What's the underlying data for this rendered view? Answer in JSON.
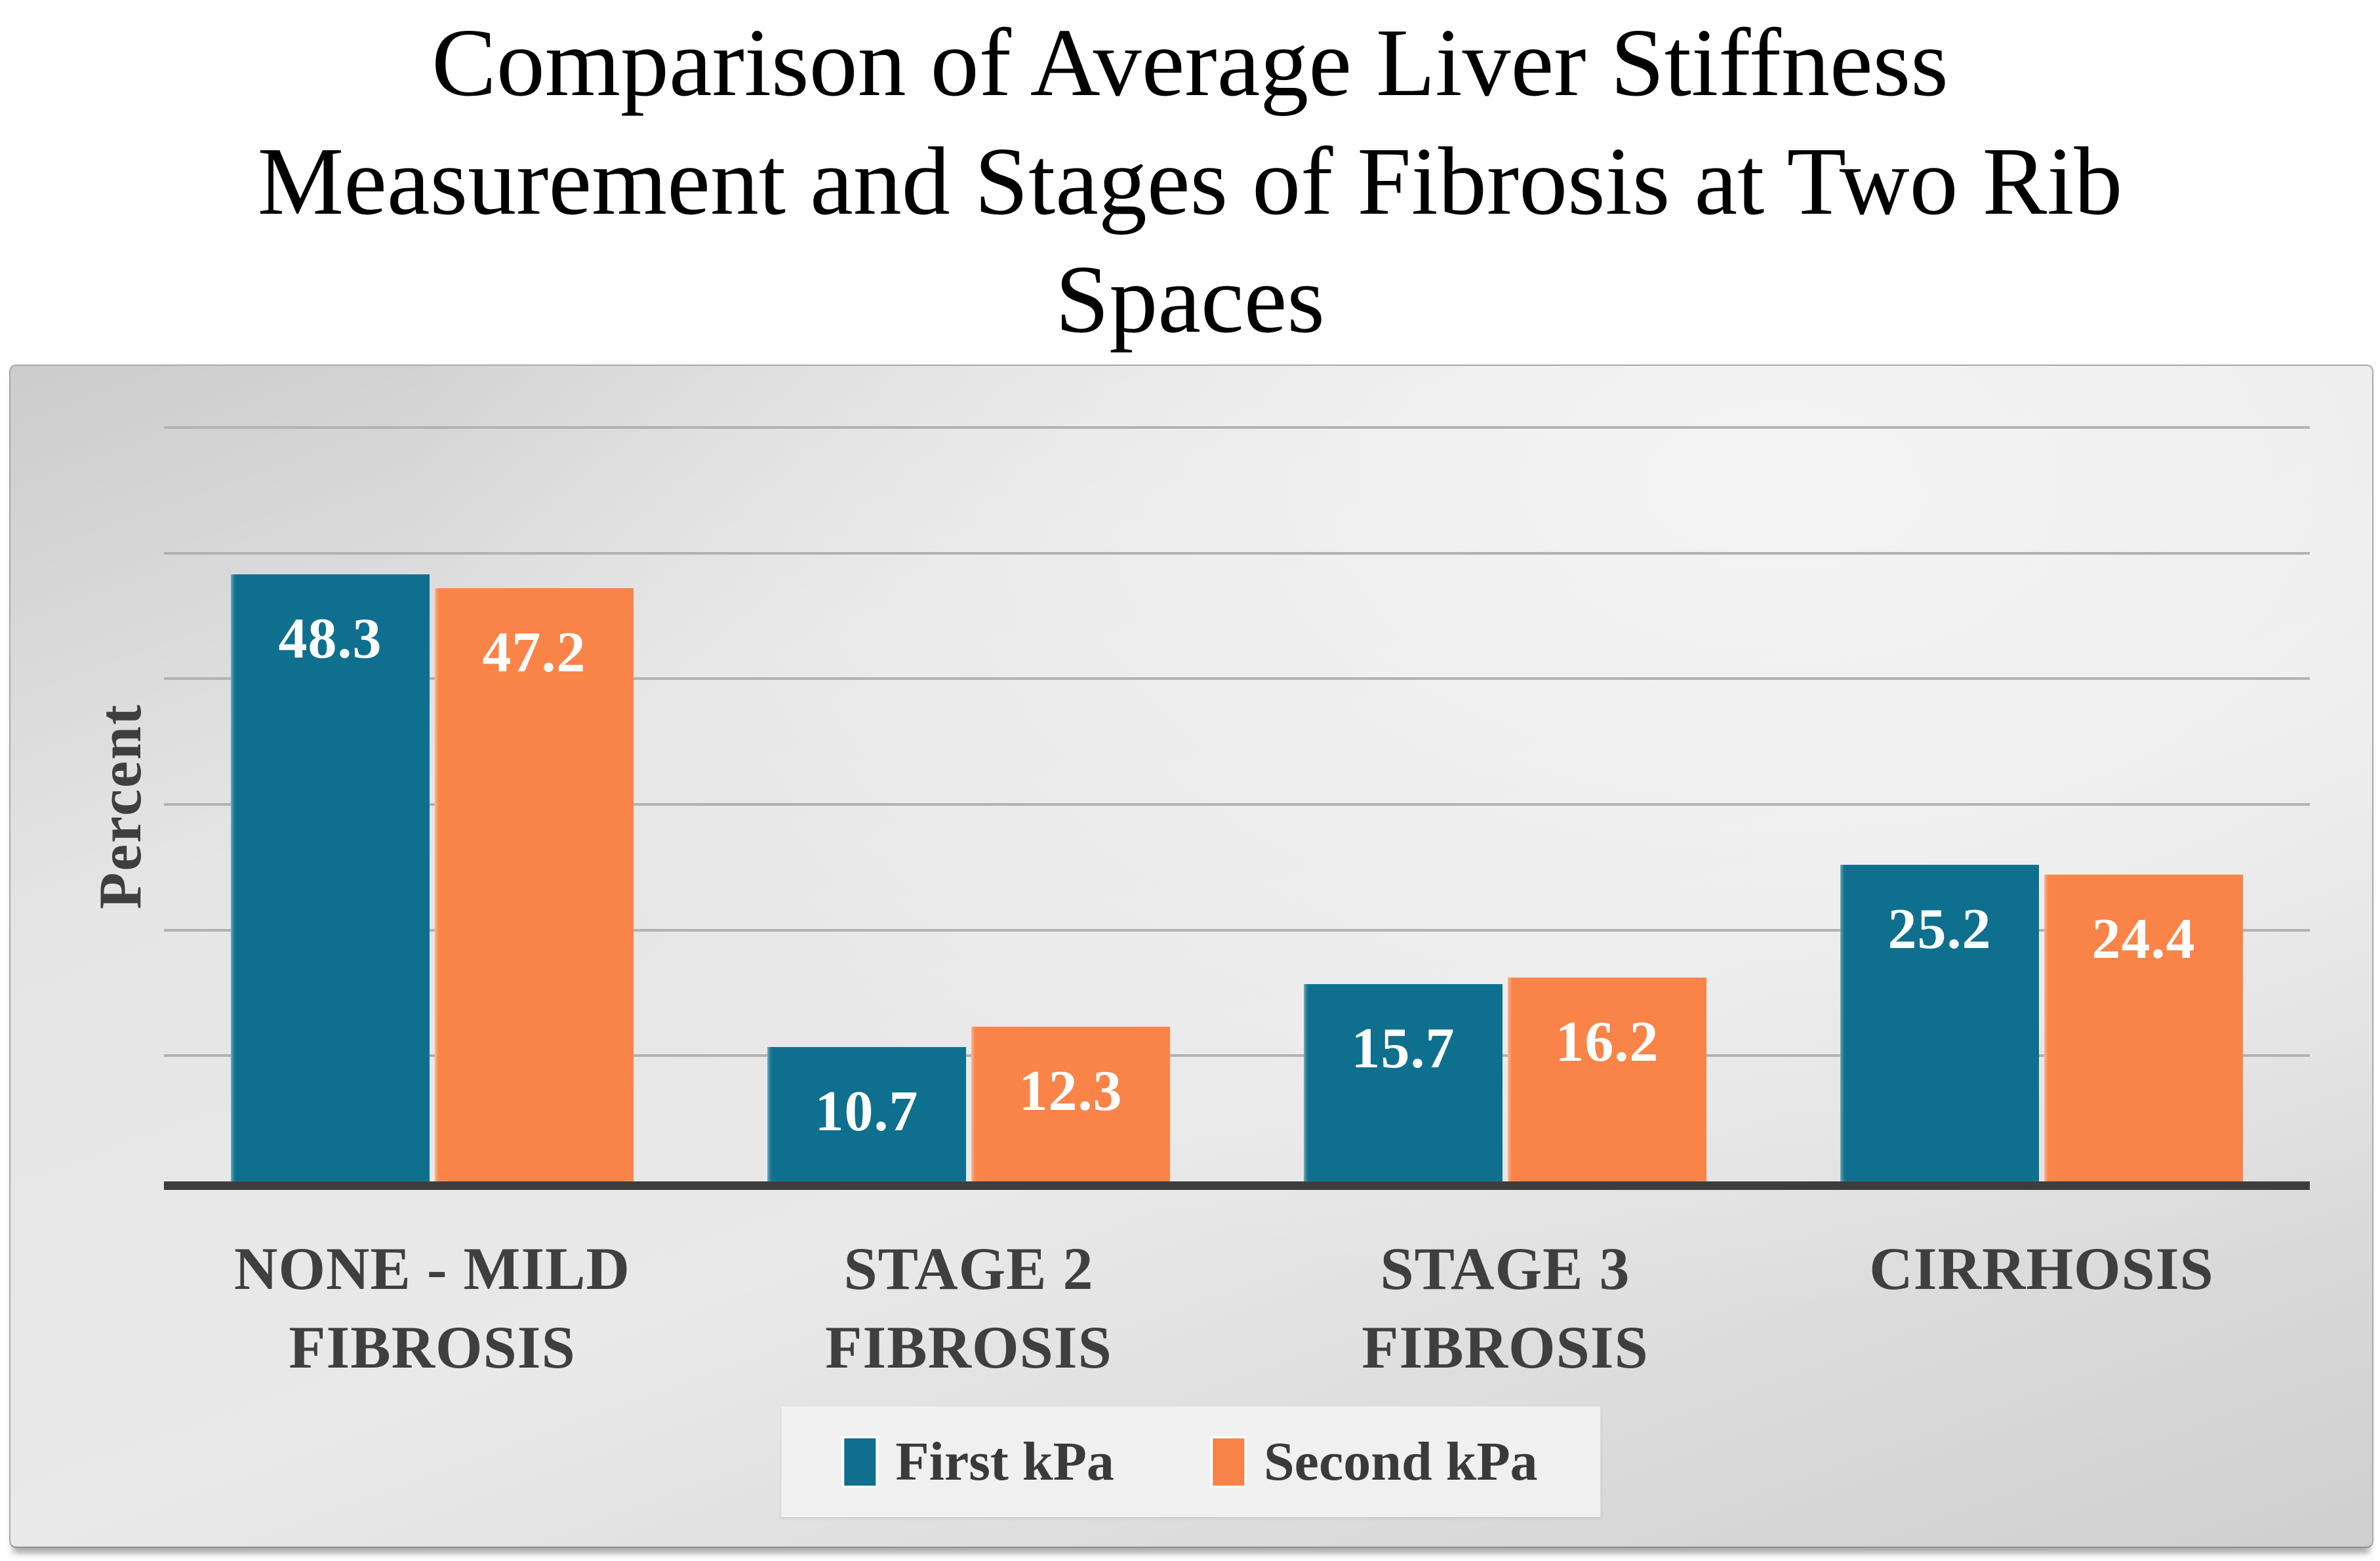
{
  "title": "Comparison of Average Liver Stiffness Measurement and Stages of Fibrosis at Two Rib Spaces",
  "title_lines": {
    "line1": "Comparison of Average Liver Stiffness",
    "line2": "Measurement and Stages of Fibrosis at Two Rib",
    "line3": "Spaces"
  },
  "chart_data": {
    "type": "bar",
    "title": "Comparison of Average Liver Stiffness Measurement and Stages of Fibrosis at Two Rib Spaces",
    "categories": [
      "NONE - MILD FIBROSIS",
      "STAGE 2 FIBROSIS",
      "STAGE 3 FIBROSIS",
      "CIRRHOSIS"
    ],
    "series": [
      {
        "name": "First kPa",
        "color": "#0E6F8E",
        "values": [
          48.3,
          10.7,
          15.7,
          25.2
        ]
      },
      {
        "name": "Second kPa",
        "color": "#FA8348",
        "values": [
          47.2,
          12.3,
          16.2,
          24.4
        ]
      }
    ],
    "xlabel": "",
    "ylabel": "Percent",
    "ylim": [
      0,
      60
    ],
    "gridline_step": 10,
    "grid": true,
    "y_tick_labels_visible": false,
    "value_labels": "inside-top",
    "legend_position": "bottom-center"
  },
  "colors": {
    "first_series": "#0E6F8E",
    "second_series": "#FA8348",
    "gridline": "#b2b2b2",
    "axis_line": "#3d3d3d",
    "category_text": "#3f3f3f",
    "legend_background": "#f0f0f0",
    "panel_background": "#e3e3e3",
    "title_text": "#000000",
    "value_label_text": "#ffffff"
  }
}
